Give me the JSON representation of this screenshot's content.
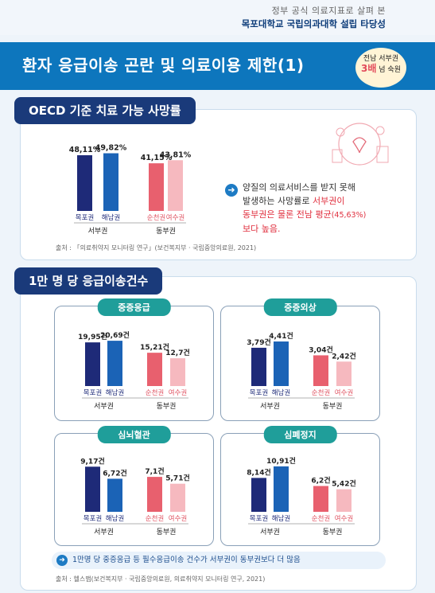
{
  "header": {
    "line1": "정부 공식 의료지표로 살펴 본",
    "line2": "목포대학교 국립의과대학 설립 타당성",
    "title": "환자 응급이송 곤란 및 의료이용 제한(1)",
    "badge_l1": "전남 서부권",
    "badge_l2": "3배",
    "badge_l3": "넘 숙원"
  },
  "section1": {
    "title": "OECD 기준 치료 가능 사망률",
    "callout_a": "양질의 의료서비스를 받지 못해",
    "callout_b": "발생하는 사망률로 ",
    "callout_c": "서부권이",
    "callout_d": "동부권은 물론 전남 평균",
    "callout_e": "(45,63%)",
    "callout_f": "보다 높음.",
    "source": "출처 : 「의료취약지 모니터링 연구」(보건복지부 · 국립중앙의료원, 2021)"
  },
  "section2": {
    "title": "1만 명 당 응급이송건수",
    "note": "1만명 당 중증응급 등 필수응급이송 건수가 서부권이 동부권보다 더 많음",
    "source": "출처 : 헬스맵(보건복지부 · 국립중앙의료원, 의료취약지 모니터링 연구, 2021)"
  },
  "colors": {
    "west_dark": "#1e2a78",
    "west_mid": "#1b63b6",
    "east_dark": "#e8606e",
    "east_light": "#f6b9bf",
    "teal": "#1f9e9a",
    "navy": "#1a3a7a"
  },
  "chart_data": [
    {
      "type": "bar",
      "title": "OECD 기준 치료 가능 사망률",
      "categories": [
        "목포권",
        "해남권",
        "순천권",
        "여수권"
      ],
      "groups": [
        "서부권",
        "서부권",
        "동부권",
        "동부권"
      ],
      "values": [
        48.11,
        49.82,
        41.15,
        43.81
      ],
      "labels": [
        "48,11%",
        "49,82%",
        "41,15%",
        "43,81%"
      ],
      "ylim": [
        0,
        55
      ]
    },
    {
      "type": "bar",
      "title": "중증응급",
      "categories": [
        "목포권",
        "해남권",
        "순천권",
        "여수권"
      ],
      "groups": [
        "서부권",
        "서부권",
        "동부권",
        "동부권"
      ],
      "values": [
        19.95,
        20.69,
        15.21,
        12.7
      ],
      "labels": [
        "19,95건",
        "20,69건",
        "15,21건",
        "12,7건"
      ],
      "ylim": [
        0,
        24
      ]
    },
    {
      "type": "bar",
      "title": "중증외상",
      "categories": [
        "목포권",
        "해남권",
        "순천권",
        "여수권"
      ],
      "groups": [
        "서부권",
        "서부권",
        "동부권",
        "동부권"
      ],
      "values": [
        3.79,
        4.41,
        3.04,
        2.42
      ],
      "labels": [
        "3,79건",
        "4,41건",
        "3,04건",
        "2,42건"
      ],
      "ylim": [
        0,
        5.2
      ]
    },
    {
      "type": "bar",
      "title": "심뇌혈관",
      "categories": [
        "목포권",
        "해남권",
        "순천권",
        "여수권"
      ],
      "groups": [
        "서부권",
        "서부권",
        "동부권",
        "동부권"
      ],
      "values": [
        9.17,
        6.72,
        7.1,
        5.71
      ],
      "labels": [
        "9,17건",
        "6,72건",
        "7,1건",
        "5,71건"
      ],
      "ylim": [
        0,
        11
      ]
    },
    {
      "type": "bar",
      "title": "심폐정지",
      "categories": [
        "목포권",
        "해남권",
        "순천권",
        "여수권"
      ],
      "groups": [
        "서부권",
        "서부권",
        "동부권",
        "동부권"
      ],
      "values": [
        8.14,
        10.91,
        6.2,
        5.42
      ],
      "labels": [
        "8,14건",
        "10,91건",
        "6,2건",
        "5,42건"
      ],
      "ylim": [
        0,
        13
      ]
    }
  ]
}
